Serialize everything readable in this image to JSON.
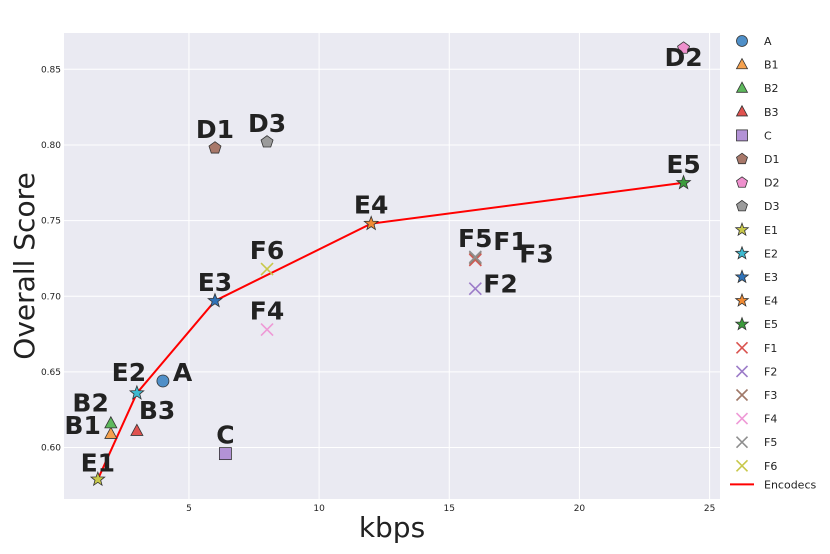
{
  "chart_data": {
    "type": "scatter",
    "title": "",
    "xlabel": "kbps",
    "ylabel": "Overall Score",
    "xlim": [
      0.2,
      25.4
    ],
    "ylim": [
      0.566,
      0.874
    ],
    "xticks": [
      5,
      10,
      15,
      20,
      25
    ],
    "yticks": [
      0.6,
      0.65,
      0.7,
      0.75,
      0.8,
      0.85
    ],
    "grid": true,
    "legend_position": "outside-right",
    "points": [
      {
        "name": "A",
        "x": 4.0,
        "y": 0.644,
        "marker": "circle",
        "color": "#4f8fc8"
      },
      {
        "name": "B1",
        "x": 2.0,
        "y": 0.609,
        "marker": "triangle",
        "color": "#f5a14e"
      },
      {
        "name": "B2",
        "x": 2.0,
        "y": 0.616,
        "marker": "triangle",
        "color": "#5db85c"
      },
      {
        "name": "B3",
        "x": 3.0,
        "y": 0.611,
        "marker": "triangle",
        "color": "#e0524f"
      },
      {
        "name": "C",
        "x": 6.4,
        "y": 0.596,
        "marker": "square",
        "color": "#b392d6"
      },
      {
        "name": "D1",
        "x": 6.0,
        "y": 0.798,
        "marker": "pentagon",
        "color": "#a8786a"
      },
      {
        "name": "D2",
        "x": 24.0,
        "y": 0.864,
        "marker": "pentagon",
        "color": "#ee90cd"
      },
      {
        "name": "D3",
        "x": 8.0,
        "y": 0.802,
        "marker": "pentagon",
        "color": "#9b9b9b"
      },
      {
        "name": "E1",
        "x": 1.5,
        "y": 0.579,
        "marker": "star",
        "color": "#c8c84a"
      },
      {
        "name": "E2",
        "x": 3.0,
        "y": 0.636,
        "marker": "star",
        "color": "#3fbad0"
      },
      {
        "name": "E3",
        "x": 6.0,
        "y": 0.697,
        "marker": "star",
        "color": "#2f72b8"
      },
      {
        "name": "E4",
        "x": 12.0,
        "y": 0.748,
        "marker": "star",
        "color": "#f08b34"
      },
      {
        "name": "E5",
        "x": 24.0,
        "y": 0.775,
        "marker": "star",
        "color": "#3c9b3c"
      },
      {
        "name": "F1",
        "x": 16.0,
        "y": 0.724,
        "marker": "x",
        "color": "#d9534f"
      },
      {
        "name": "F2",
        "x": 16.0,
        "y": 0.705,
        "marker": "x",
        "color": "#9c7bc8"
      },
      {
        "name": "F3",
        "x": 16.0,
        "y": 0.725,
        "marker": "x",
        "color": "#a07868"
      },
      {
        "name": "F4",
        "x": 8.0,
        "y": 0.678,
        "marker": "x",
        "color": "#ee99d6"
      },
      {
        "name": "F5",
        "x": 16.0,
        "y": 0.726,
        "marker": "x",
        "color": "#8f8f8f"
      },
      {
        "name": "F6",
        "x": 8.0,
        "y": 0.718,
        "marker": "x",
        "color": "#c8c84a"
      }
    ],
    "line": {
      "name": "Encodecs",
      "color": "#ff0000",
      "x": [
        1.5,
        3.0,
        6.0,
        12.0,
        24.0
      ],
      "y": [
        0.579,
        0.636,
        0.697,
        0.748,
        0.775
      ]
    }
  }
}
